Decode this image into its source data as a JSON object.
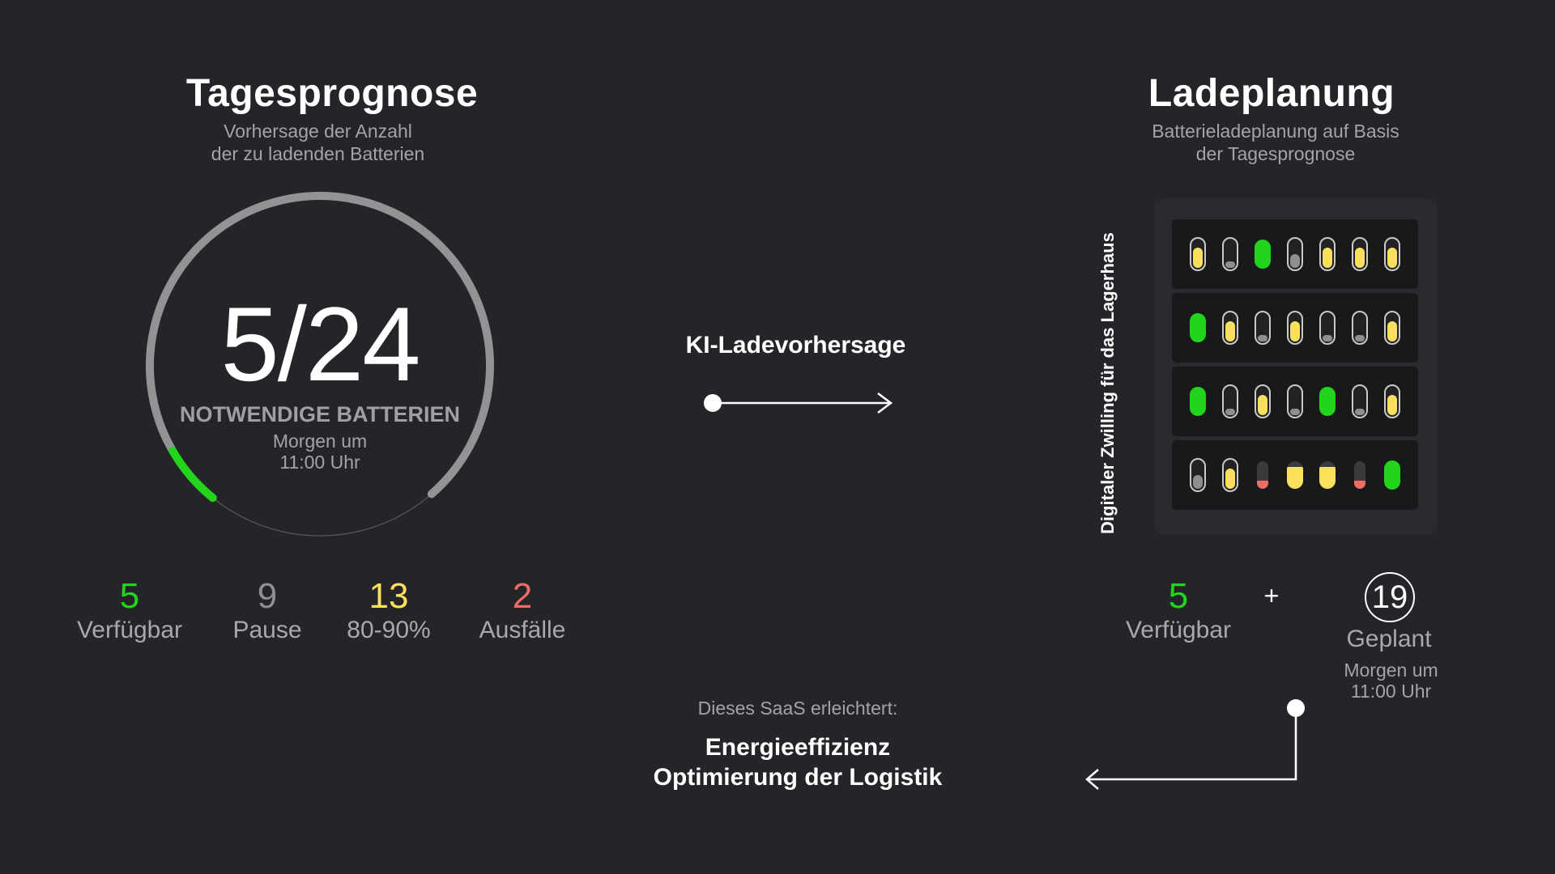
{
  "colors": {
    "green": "#22d51c",
    "yellow": "#fbe05e",
    "red": "#ef6b64",
    "gray": "#8e8e93",
    "background": "#242529"
  },
  "forecast": {
    "title": "Tagesprognose",
    "subtitle_line1": "Vorhersage der Anzahl",
    "subtitle_line2": "der zu ladenden Batterien",
    "gauge": {
      "value": "5/24",
      "label": "NOTWENDIGE BATTERIEN",
      "time_line1": "Morgen um",
      "time_line2": "11:00 Uhr",
      "progress": 0.2083
    },
    "stats": [
      {
        "value": "5",
        "label": "Verfügbar",
        "color": "#22d51c"
      },
      {
        "value": "9",
        "label": "Pause",
        "color": "#8e8e93"
      },
      {
        "value": "13",
        "label": "80-90%",
        "color": "#fbe05e"
      },
      {
        "value": "2",
        "label": "Ausfälle",
        "color": "#ef6b64"
      }
    ]
  },
  "middle": {
    "arrow_label": "KI-Ladevorhersage",
    "saas_intro": "Dieses SaaS erleichtert:",
    "benefit_1": "Energieeffizienz",
    "benefit_2": "Optimierung der Logistik"
  },
  "plan": {
    "title": "Ladeplanung",
    "subtitle_line1": "Batterieladeplanung auf Basis",
    "subtitle_line2": "der Tagesprognose",
    "twin_label": "Digitaler Zwilling für das Lagerhaus",
    "available_value": "5",
    "available_label": "Verfügbar",
    "plus": "+",
    "planned_value": "19",
    "planned_label": "Geplant",
    "planned_time_line1": "Morgen um",
    "planned_time_line2": "11:00 Uhr"
  },
  "battery_grid": [
    [
      "y",
      "g1",
      "G",
      "g2",
      "y",
      "y",
      "y"
    ],
    [
      "G",
      "y",
      "g1",
      "y",
      "g1",
      "g1",
      "y"
    ],
    [
      "G",
      "g1",
      "y",
      "g1",
      "G",
      "g1",
      "y"
    ],
    [
      "g2",
      "y",
      "r",
      "ys",
      "ys",
      "r",
      "G"
    ]
  ]
}
